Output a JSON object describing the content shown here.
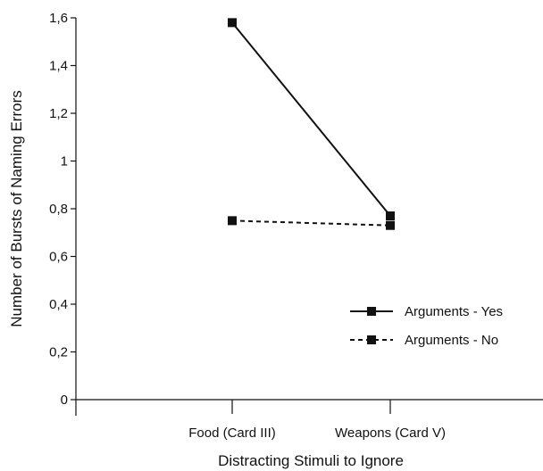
{
  "chart_data": {
    "type": "line",
    "xlabel": "Distracting Stimuli to Ignore",
    "ylabel": "Number of Bursts of Naming Errors",
    "categories": [
      "Food (Card III)",
      "Weapons (Card V)"
    ],
    "ylim": [
      0,
      1.6
    ],
    "yticks": [
      "0",
      "0,2",
      "0,4",
      "0,6",
      "0,8",
      "1",
      "1,2",
      "1,4",
      "1,6"
    ],
    "grid": false,
    "legend_position": "lower-right",
    "series": [
      {
        "name": "Arguments - Yes",
        "values": [
          1.58,
          0.77
        ],
        "line_style": "solid",
        "color": "#111111"
      },
      {
        "name": "Arguments - No",
        "values": [
          0.75,
          0.73
        ],
        "line_style": "dashed",
        "color": "#111111"
      }
    ]
  }
}
